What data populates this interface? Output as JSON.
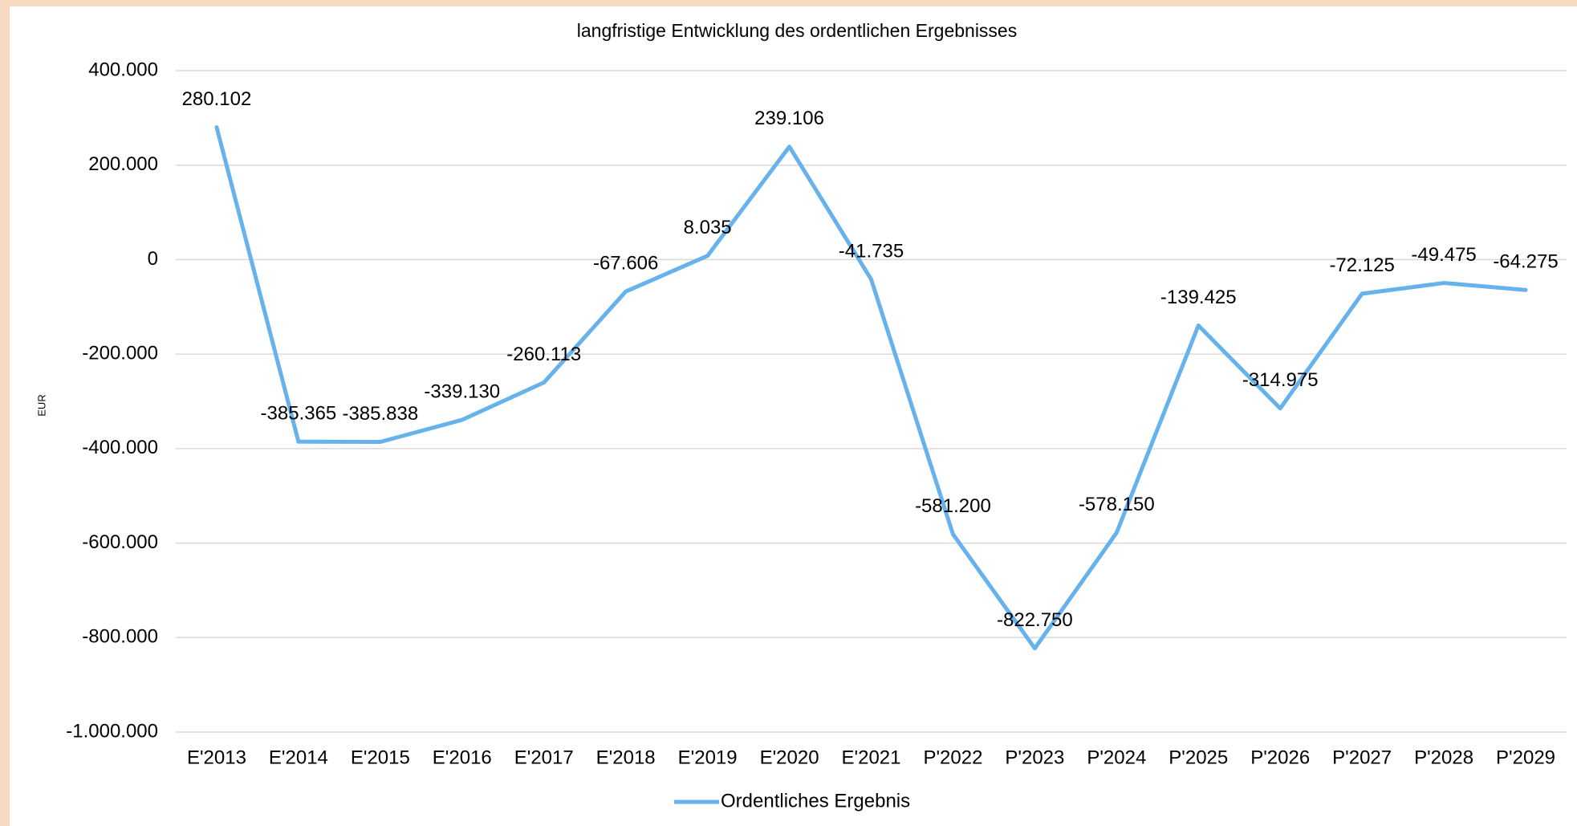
{
  "chart_data": {
    "type": "line",
    "title": "langfristige Entwicklung des ordentlichen Ergebnisses",
    "y_label": "EUR",
    "categories": [
      "E'2013",
      "E'2014",
      "E'2015",
      "E'2016",
      "E'2017",
      "E'2018",
      "E'2019",
      "E'2020",
      "E'2021",
      "P'2022",
      "P'2023",
      "P'2024",
      "P'2025",
      "P'2026",
      "P'2027",
      "P'2028",
      "P'2029"
    ],
    "series": [
      {
        "name": "Ordentliches Ergebnis",
        "color": "#66b2ec",
        "values": [
          280102,
          -385365,
          -385838,
          -339130,
          -260113,
          -67606,
          8035,
          239106,
          -41735,
          -581200,
          -822750,
          -578150,
          -139425,
          -314975,
          -72125,
          -49475,
          -64275
        ],
        "value_labels": [
          "280.102",
          "-385.365",
          "-385.838",
          "-339.130",
          "-260.113",
          "-67.606",
          "8.035",
          "239.106",
          "-41.735",
          "-581.200",
          "-822.750",
          "-578.150",
          "-139.425",
          "-314.975",
          "-72.125",
          "-49.475",
          "-64.275"
        ]
      }
    ],
    "ylim": [
      -1000000,
      400000
    ],
    "yticks": [
      {
        "value": -1000000,
        "label": "-1.000.000"
      },
      {
        "value": -800000,
        "label": "-800.000"
      },
      {
        "value": -600000,
        "label": "-600.000"
      },
      {
        "value": -400000,
        "label": "-400.000"
      },
      {
        "value": -200000,
        "label": "-200.000"
      },
      0,
      {
        "value": 200000,
        "label": "200.000"
      },
      {
        "value": 400000,
        "label": "400.000"
      }
    ],
    "grid": true,
    "legend": "bottom"
  }
}
